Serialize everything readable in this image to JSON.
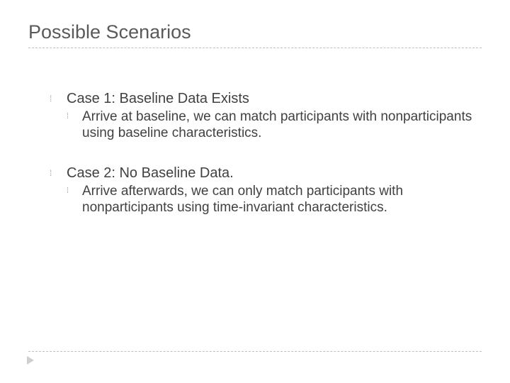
{
  "title": "Possible Scenarios",
  "title_color": "#5a5a5a",
  "title_fontsize": 27,
  "body_color": "#414141",
  "body_fontsize_l1": 20,
  "body_fontsize_l2": 19,
  "bullet_glyph": "⁞",
  "bullet_color": "#9f9f9f",
  "divider_color": "#bfbfbf",
  "marker_color": "#cfcfcf",
  "background_color": "#ffffff",
  "items": [
    {
      "label": "Case 1: Baseline Data Exists",
      "children": [
        {
          "label": "Arrive at baseline, we can match participants with nonparticipants using baseline characteristics."
        }
      ]
    },
    {
      "label": "Case 2: No Baseline Data.",
      "children": [
        {
          "label": "Arrive afterwards, we can only match participants with nonparticipants using time-invariant characteristics."
        }
      ]
    }
  ]
}
